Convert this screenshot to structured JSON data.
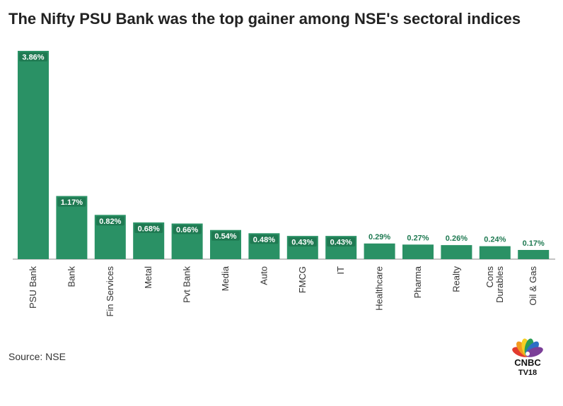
{
  "title": "The Nifty PSU Bank was the top gainer among NSE's sectoral indices",
  "source": "Source: NSE",
  "logo": {
    "line1": "CNBC",
    "line2": "TV18"
  },
  "colors": {
    "bar": "#2a9165",
    "label_box": "#1f7a52",
    "label_text_inside": "#ffffff",
    "label_text_outside": "#1f7a52",
    "axis": "#888888",
    "tick_text": "#333333"
  },
  "chart_data": {
    "type": "bar",
    "title": "The Nifty PSU Bank was the top gainer among NSE's sectoral indices",
    "xlabel": "",
    "ylabel": "",
    "categories": [
      "PSU Bank",
      "Bank",
      "Fin Services",
      "Metal",
      "Pvt Bank",
      "Media",
      "Auto",
      "FMCG",
      "IT",
      "Healthcare",
      "Pharma",
      "Realty",
      "Cons Durables",
      "Oil & Gas"
    ],
    "values": [
      3.86,
      1.17,
      0.82,
      0.68,
      0.66,
      0.54,
      0.48,
      0.43,
      0.43,
      0.29,
      0.27,
      0.26,
      0.24,
      0.17
    ],
    "data_labels": [
      "3.86%",
      "1.17%",
      "0.82%",
      "0.68%",
      "0.66%",
      "0.54%",
      "0.48%",
      "0.43%",
      "0.43%",
      "0.29%",
      "0.27%",
      "0.26%",
      "0.24%",
      "0.17%"
    ],
    "ylim": [
      0,
      3.86
    ],
    "grid": false,
    "legend": "none"
  }
}
